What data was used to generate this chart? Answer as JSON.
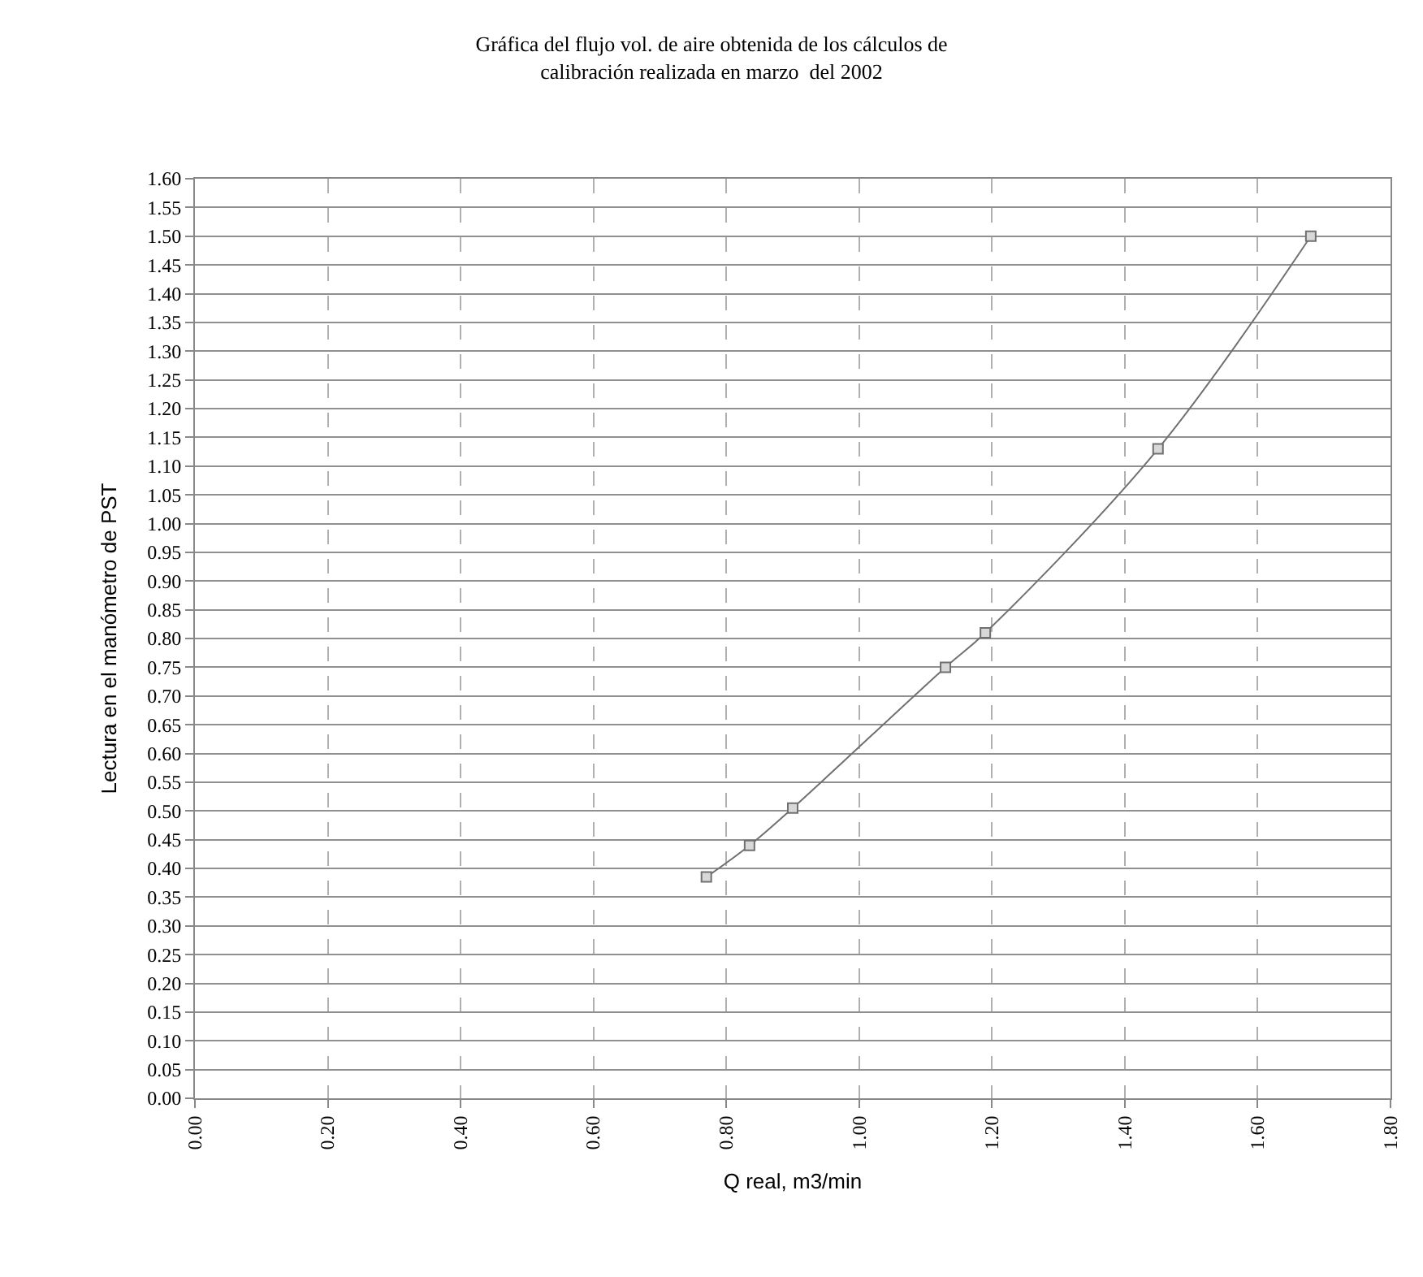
{
  "chart_data": {
    "type": "line",
    "title": "Gráfica del flujo vol. de aire obtenida de los cálculos de\ncalibración realizada en marzo  del 2002",
    "xlabel": "Q real, m3/min",
    "ylabel": "Lectura en el manómetro de PST",
    "x": [
      0.77,
      0.835,
      0.9,
      1.13,
      1.19,
      1.45,
      1.68
    ],
    "series": [
      {
        "color": "#707070",
        "values": [
          0.385,
          0.44,
          0.505,
          0.75,
          0.81,
          1.13,
          1.5
        ]
      }
    ],
    "xlim": [
      0,
      1.8
    ],
    "xticks": [
      {
        "value": 0,
        "label": "0.00"
      },
      {
        "value": 0.2,
        "label": "0.20"
      },
      {
        "value": 0.4,
        "label": "0.40"
      },
      {
        "value": 0.6,
        "label": "0.60"
      },
      {
        "value": 0.8,
        "label": "0.80"
      },
      {
        "value": 1.0,
        "label": "1.00"
      },
      {
        "value": 1.2,
        "label": "1.20"
      },
      {
        "value": 1.4,
        "label": "1.40"
      },
      {
        "value": 1.6,
        "label": "1.60"
      },
      {
        "value": 1.8,
        "label": "1.80"
      }
    ],
    "ylim": [
      0,
      1.6
    ],
    "yticks": [
      {
        "value": 0,
        "label": "0.00"
      },
      {
        "value": 0.05,
        "label": "0.05"
      },
      {
        "value": 0.1,
        "label": "0.10"
      },
      {
        "value": 0.15,
        "label": "0.15"
      },
      {
        "value": 0.2,
        "label": "0.20"
      },
      {
        "value": 0.25,
        "label": "0.25"
      },
      {
        "value": 0.3,
        "label": "0.30"
      },
      {
        "value": 0.35,
        "label": "0.35"
      },
      {
        "value": 0.4,
        "label": "0.40"
      },
      {
        "value": 0.45,
        "label": "0.45"
      },
      {
        "value": 0.5,
        "label": "0.50"
      },
      {
        "value": 0.55,
        "label": "0.55"
      },
      {
        "value": 0.6,
        "label": "0.60"
      },
      {
        "value": 0.65,
        "label": "0.65"
      },
      {
        "value": 0.7,
        "label": "0.70"
      },
      {
        "value": 0.75,
        "label": "0.75"
      },
      {
        "value": 0.8,
        "label": "0.80"
      },
      {
        "value": 0.85,
        "label": "0.85"
      },
      {
        "value": 0.9,
        "label": "0.90"
      },
      {
        "value": 0.95,
        "label": "0.95"
      },
      {
        "value": 1.0,
        "label": "1.00"
      },
      {
        "value": 1.05,
        "label": "1.05"
      },
      {
        "value": 1.1,
        "label": "1.10"
      },
      {
        "value": 1.15,
        "label": "1.15"
      },
      {
        "value": 1.2,
        "label": "1.20"
      },
      {
        "value": 1.25,
        "label": "1.25"
      },
      {
        "value": 1.3,
        "label": "1.30"
      },
      {
        "value": 1.35,
        "label": "1.35"
      },
      {
        "value": 1.4,
        "label": "1.40"
      },
      {
        "value": 1.45,
        "label": "1.45"
      },
      {
        "value": 1.5,
        "label": "1.50"
      },
      {
        "value": 1.55,
        "label": "1.55"
      },
      {
        "value": 1.6,
        "label": "1.60"
      }
    ],
    "grid": true,
    "marker": "square",
    "line_style": "solid"
  }
}
